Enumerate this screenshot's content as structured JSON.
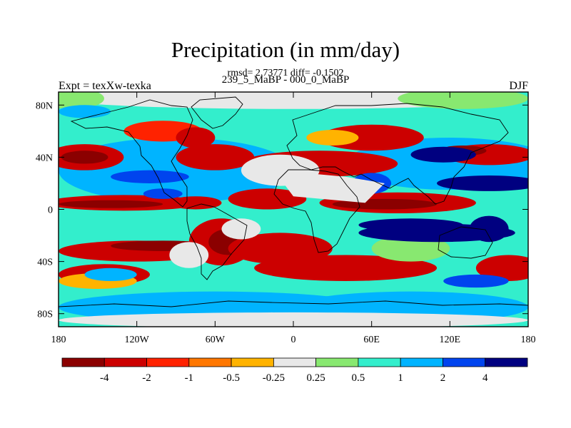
{
  "title": "Precipitation (in mm/day)",
  "stats": "rmsd= 2.73771 diff= -0.1502",
  "subtitle": "239_5_MaBP - 000_0_MaBP",
  "left_label": "Expt = texXw-texka",
  "right_label": "DJF",
  "lat_ticks": [
    "80N",
    "40N",
    "0",
    "40S",
    "80S"
  ],
  "lon_ticks": [
    "180",
    "120W",
    "60W",
    "0",
    "60E",
    "120E",
    "180"
  ],
  "colorbar": {
    "colors": [
      "#8b0000",
      "#cc0000",
      "#ff2200",
      "#ff7700",
      "#ffb300",
      "#e8e8e8",
      "#88e870",
      "#33eecc",
      "#00b4ff",
      "#0044ee",
      "#000080"
    ],
    "labels": [
      "-4",
      "-2",
      "-1",
      "-0.5",
      "-0.25",
      "0.25",
      "0.5",
      "1",
      "2",
      "4"
    ]
  },
  "map_colors": {
    "drydeep": "#8b0000",
    "dry": "#cc0000",
    "drymid": "#ff2200",
    "orange": "#ff7700",
    "yellow": "#ffb300",
    "neutral": "#e8e8e8",
    "green": "#88e870",
    "cyan": "#33eecc",
    "sky": "#00b4ff",
    "blue": "#0044ee",
    "navy": "#000080"
  }
}
